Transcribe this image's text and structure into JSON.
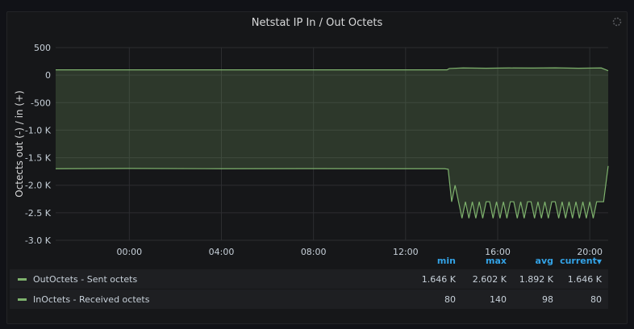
{
  "panel": {
    "title": "Netstat IP In / Out Octets"
  },
  "legend": {
    "columns": [
      "min",
      "max",
      "avg",
      "current"
    ],
    "rows": [
      {
        "name": "OutOctets - Sent octets",
        "min": "1.646 K",
        "max": "2.602 K",
        "avg": "1.892 K",
        "current": "1.646 K"
      },
      {
        "name": "InOctets - Received octets",
        "min": "80",
        "max": "140",
        "avg": "98",
        "current": "80"
      }
    ]
  },
  "chart_data": {
    "type": "area",
    "ylabel": "Octects out (-) / in (+)",
    "yticks": [
      "500",
      "0",
      "-500",
      "-1.0 K",
      "-1.5 K",
      "-2.0 K",
      "-2.5 K",
      "-3.0 K"
    ],
    "ylim": [
      -3000,
      500
    ],
    "xticks": [
      "00:00",
      "04:00",
      "08:00",
      "12:00",
      "16:00",
      "20:00"
    ],
    "xlim_hours": [
      -3.2,
      20.8
    ],
    "color": "#7eb26d",
    "series": [
      {
        "name": "InOctets - Received octets",
        "x": [
          -3.2,
          13.8,
          13.9,
          14.5,
          15.5,
          16.5,
          17.5,
          18.5,
          19.5,
          20.5,
          20.8
        ],
        "values": [
          95,
          95,
          120,
          130,
          125,
          130,
          128,
          132,
          125,
          130,
          80
        ]
      },
      {
        "name": "OutOctets - Sent octets",
        "x": [
          -3.2,
          0,
          4,
          8,
          12,
          13.7,
          13.85,
          14.0,
          14.15,
          14.3,
          14.45,
          14.6,
          14.75,
          14.9,
          15.05,
          15.2,
          15.35,
          15.5,
          15.65,
          15.8,
          15.95,
          16.1,
          16.25,
          16.4,
          16.55,
          16.7,
          16.85,
          17.0,
          17.15,
          17.3,
          17.45,
          17.6,
          17.75,
          17.9,
          18.05,
          18.2,
          18.35,
          18.5,
          18.65,
          18.8,
          18.95,
          19.1,
          19.25,
          19.4,
          19.55,
          19.7,
          19.85,
          20.0,
          20.15,
          20.3,
          20.45,
          20.6,
          20.8
        ],
        "values": [
          -1700,
          -1695,
          -1700,
          -1698,
          -1700,
          -1700,
          -1710,
          -2300,
          -2000,
          -2300,
          -2600,
          -2300,
          -2600,
          -2300,
          -2600,
          -2300,
          -2600,
          -2300,
          -2300,
          -2600,
          -2300,
          -2600,
          -2300,
          -2600,
          -2300,
          -2300,
          -2600,
          -2300,
          -2600,
          -2300,
          -2300,
          -2600,
          -2300,
          -2600,
          -2300,
          -2600,
          -2300,
          -2300,
          -2600,
          -2300,
          -2600,
          -2300,
          -2600,
          -2300,
          -2600,
          -2300,
          -2600,
          -2300,
          -2600,
          -2300,
          -2300,
          -2300,
          -1650
        ]
      }
    ]
  }
}
